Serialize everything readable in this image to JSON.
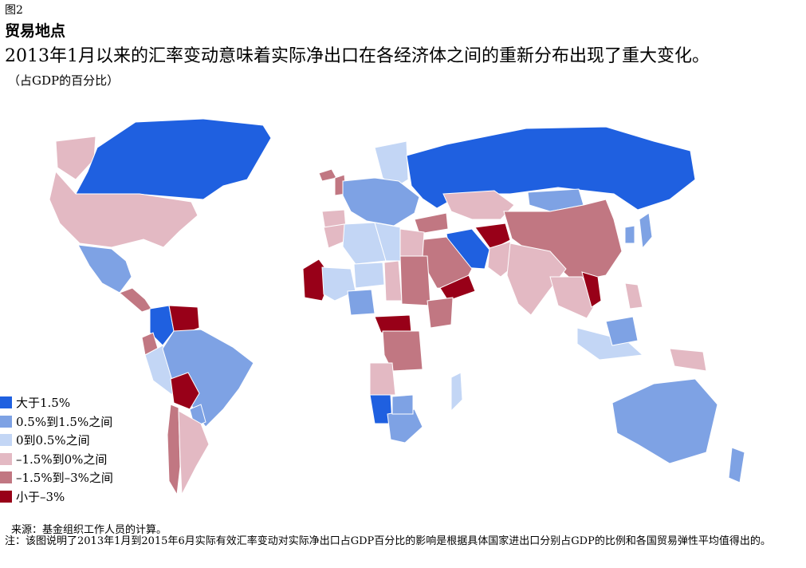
{
  "figure_label": "图2",
  "title": "贸易地点",
  "subtitle": "2013年1月以来的汇率变动意味着实际净出口在各经济体之间的重新分布出现了重大变化。",
  "unit": "（占GDP的百分比）",
  "legend": [
    {
      "label": "大于1.5%",
      "color": "#1f60e0"
    },
    {
      "label": "0.5%到1.5%之间",
      "color": "#7ea2e4"
    },
    {
      "label": "0到0.5%之间",
      "color": "#c3d6f5"
    },
    {
      "label": "–1.5%到0%之间",
      "color": "#e3b9c3"
    },
    {
      "label": "–1.5%到–3%之间",
      "color": "#c17782"
    },
    {
      "label": "小于–3%",
      "color": "#980018"
    }
  ],
  "source": "来源：基金组织工作人员的计算。",
  "note": "注：该图说明了2013年1月到2015年6月实际有效汇率变动对实际净出口占GDP百分比的影响是根据具体国家进出口分别占GDP的比例和各国贸易弹性平均值得出的。",
  "map_regions": [
    {
      "name": "greenland",
      "category": 3
    },
    {
      "name": "canada",
      "category": 0
    },
    {
      "name": "united-states",
      "category": 3
    },
    {
      "name": "mexico",
      "category": 1
    },
    {
      "name": "central-america",
      "category": 4
    },
    {
      "name": "colombia",
      "category": 0
    },
    {
      "name": "venezuela",
      "category": 5
    },
    {
      "name": "ecuador",
      "category": 4
    },
    {
      "name": "peru",
      "category": 2
    },
    {
      "name": "brazil",
      "category": 1
    },
    {
      "name": "bolivia",
      "category": 5
    },
    {
      "name": "paraguay",
      "category": 1
    },
    {
      "name": "chile",
      "category": 4
    },
    {
      "name": "argentina",
      "category": 3
    },
    {
      "name": "iceland",
      "category": 4
    },
    {
      "name": "united-kingdom",
      "category": 4
    },
    {
      "name": "scandinavia",
      "category": 2
    },
    {
      "name": "europe-west",
      "category": 1
    },
    {
      "name": "iberia",
      "category": 3
    },
    {
      "name": "russia",
      "category": 0
    },
    {
      "name": "kazakhstan",
      "category": 3
    },
    {
      "name": "mongolia",
      "category": 1
    },
    {
      "name": "china",
      "category": 4
    },
    {
      "name": "japan",
      "category": 1
    },
    {
      "name": "korea",
      "category": 1
    },
    {
      "name": "iran",
      "category": 0
    },
    {
      "name": "afghanistan",
      "category": 5
    },
    {
      "name": "pakistan",
      "category": 3
    },
    {
      "name": "india",
      "category": 3
    },
    {
      "name": "turkey",
      "category": 4
    },
    {
      "name": "saudi-arabia",
      "category": 4
    },
    {
      "name": "yemen",
      "category": 5
    },
    {
      "name": "morocco",
      "category": 3
    },
    {
      "name": "algeria",
      "category": 2
    },
    {
      "name": "libya",
      "category": 2
    },
    {
      "name": "egypt",
      "category": 3
    },
    {
      "name": "mauritania",
      "category": 5
    },
    {
      "name": "mali",
      "category": 2
    },
    {
      "name": "niger",
      "category": 2
    },
    {
      "name": "chad",
      "category": 3
    },
    {
      "name": "sudan",
      "category": 4
    },
    {
      "name": "ethiopia",
      "category": 4
    },
    {
      "name": "nigeria",
      "category": 1
    },
    {
      "name": "central-african-republic",
      "category": 5
    },
    {
      "name": "dr-congo",
      "category": 4
    },
    {
      "name": "angola",
      "category": 3
    },
    {
      "name": "namibia",
      "category": 0
    },
    {
      "name": "south-africa",
      "category": 1
    },
    {
      "name": "botswana",
      "category": 1
    },
    {
      "name": "madagascar",
      "category": 2
    },
    {
      "name": "southeast-asia",
      "category": 3
    },
    {
      "name": "vietnam",
      "category": 5
    },
    {
      "name": "indonesia",
      "category": 2
    },
    {
      "name": "borneo",
      "category": 1
    },
    {
      "name": "philippines",
      "category": 3
    },
    {
      "name": "papua-new-guinea",
      "category": 3
    },
    {
      "name": "australia",
      "category": 1
    },
    {
      "name": "new-zealand",
      "category": 1
    }
  ]
}
